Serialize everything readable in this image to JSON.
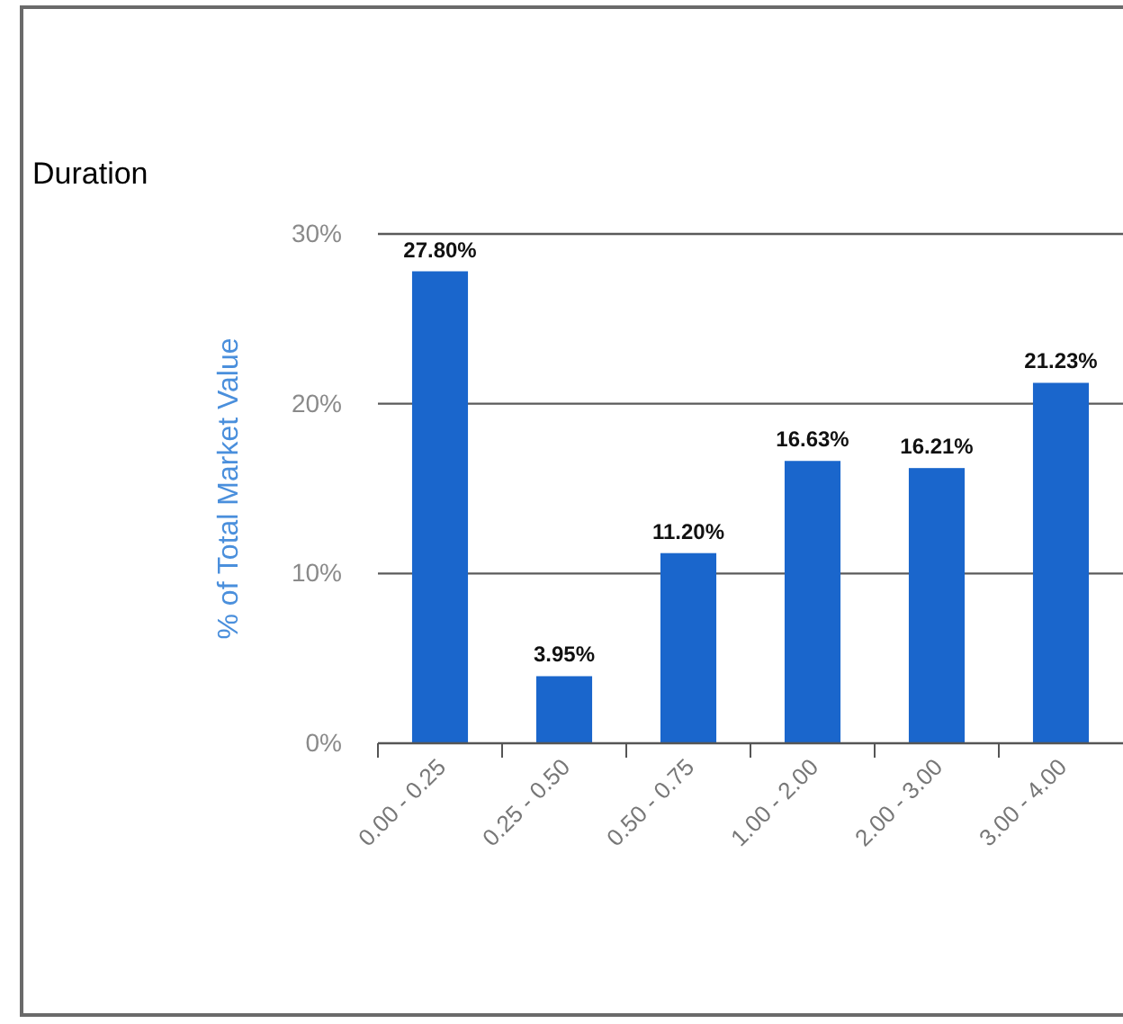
{
  "chart_data": {
    "type": "bar",
    "title": "Duration",
    "ylabel": "% of Total Market Value",
    "categories": [
      "0.00 - 0.25",
      "0.25 - 0.50",
      "0.50 - 0.75",
      "1.00 - 2.00",
      "2.00 - 3.00",
      "3.00 - 4.00"
    ],
    "values": [
      27.8,
      3.95,
      11.2,
      16.63,
      16.21,
      21.23
    ],
    "value_labels": [
      "27.80%",
      "3.95%",
      "11.20%",
      "16.63%",
      "16.21%",
      "21.23%"
    ],
    "color": "#1a66cc",
    "ylim": [
      0,
      30
    ],
    "yticks": [
      {
        "value": 0,
        "label": "0%"
      },
      {
        "value": 10,
        "label": "10%"
      },
      {
        "value": 20,
        "label": "20%"
      },
      {
        "value": 30,
        "label": "30%"
      }
    ],
    "grid": "y"
  }
}
